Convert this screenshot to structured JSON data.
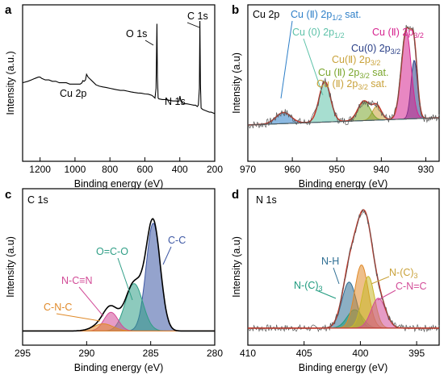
{
  "figure": {
    "panels": [
      "a",
      "b",
      "c",
      "d"
    ]
  },
  "chart_data": [
    {
      "panel": "a",
      "type": "line",
      "title": "",
      "xlabel": "Binding energy (eV)",
      "ylabel": "Intensity (a.u.)",
      "xlim": [
        1300,
        200
      ],
      "x_reversed": true,
      "xticks": [
        "1200",
        "1000",
        "800",
        "600",
        "400",
        "200"
      ],
      "grid": false,
      "series": [
        {
          "x": [
            1300,
            1270,
            1250,
            1230,
            1210,
            1200,
            1190,
            1170,
            1150,
            1130,
            1110,
            1090,
            1070,
            1050,
            1030,
            1010,
            990,
            970,
            960,
            955,
            948,
            940,
            934,
            925,
            900,
            880,
            860,
            840,
            820,
            800,
            780,
            760,
            740,
            720,
            700,
            680,
            660,
            640,
            620,
            600,
            580,
            560,
            550,
            542,
            536,
            531,
            528,
            524,
            520,
            500,
            480,
            460,
            440,
            420,
            410,
            404,
            399,
            394,
            390,
            380,
            360,
            340,
            320,
            310,
            300,
            294,
            288,
            285,
            282,
            278,
            270,
            260,
            250,
            240,
            230,
            220,
            210,
            200
          ],
          "y": [
            0.56,
            0.57,
            0.58,
            0.59,
            0.6,
            0.6,
            0.59,
            0.58,
            0.58,
            0.57,
            0.57,
            0.56,
            0.56,
            0.56,
            0.55,
            0.55,
            0.55,
            0.55,
            0.56,
            0.575,
            0.57,
            0.58,
            0.62,
            0.6,
            0.57,
            0.545,
            0.535,
            0.53,
            0.525,
            0.52,
            0.515,
            0.51,
            0.505,
            0.505,
            0.5,
            0.495,
            0.49,
            0.487,
            0.485,
            0.48,
            0.478,
            0.47,
            0.46,
            0.45,
            0.52,
            0.98,
            0.6,
            0.45,
            0.445,
            0.44,
            0.44,
            0.435,
            0.43,
            0.43,
            0.425,
            0.43,
            0.465,
            0.43,
            0.42,
            0.41,
            0.41,
            0.405,
            0.4,
            0.4,
            0.39,
            0.4,
            0.52,
            1.0,
            0.55,
            0.38,
            0.37,
            0.365,
            0.36,
            0.355,
            0.35,
            0.35,
            0.345,
            0.34
          ]
        }
      ],
      "annotations": [
        "C 1s",
        "O 1s",
        "N 1s",
        "Cu 2p"
      ]
    },
    {
      "panel": "b",
      "type": "area",
      "title": "Cu 2p",
      "xlabel": "Binding energy (eV)",
      "ylabel": "Intensity (a.u)",
      "xlim": [
        970,
        927
      ],
      "x_reversed": true,
      "xticks": [
        "970",
        "960",
        "950",
        "940",
        "930"
      ],
      "grid": false,
      "series": [
        {
          "label": "Cu(0) 2p3/2",
          "color": "#2a3f87",
          "center_eV": 932.6,
          "height": 0.42,
          "fwhm": 1.7
        },
        {
          "label": "Cu (II) 2p3/2",
          "color": "#d6248f",
          "center_eV": 934.4,
          "height": 0.63,
          "fwhm": 2.6
        },
        {
          "label": "Cu (II) 2p3/2 sat.",
          "color": "#c9a23a",
          "center_eV": 941.0,
          "height": 0.1,
          "fwhm": 2.4
        },
        {
          "label": "Cu (II) 2p3/2 sat.",
          "color": "#7aa62d",
          "center_eV": 943.9,
          "height": 0.14,
          "fwhm": 3.2
        },
        {
          "label": "Cu (0) 2p1/2",
          "color": "#5ec2a9",
          "center_eV": 952.7,
          "height": 0.29,
          "fwhm": 3.0
        },
        {
          "label": "Cu (II) 2p1/2 sat.",
          "color": "#2e7fc8",
          "center_eV": 962.0,
          "height": 0.08,
          "fwhm": 4.0
        }
      ],
      "annotations": [
        "Cu (II) 2p1/2 sat.",
        "Cu (0) 2p1/2",
        "Cu (II) 2p3/2",
        "Cu(0) 2p3/2",
        "Cu(II) 2p3/2",
        "Cu (II) 2p3/2 sat.",
        "Cu (II) 2p3/2 sat."
      ]
    },
    {
      "panel": "c",
      "type": "area",
      "title": "C 1s",
      "xlabel": "Binding energy (eV)",
      "ylabel": "Intensity (a.u)",
      "xlim": [
        295,
        280
      ],
      "x_reversed": true,
      "xticks": [
        "295",
        "290",
        "285",
        "280"
      ],
      "grid": false,
      "series": [
        {
          "label": "C-C",
          "color": "#3d57a4",
          "center_eV": 284.8,
          "height": 0.75,
          "fwhm": 1.3
        },
        {
          "label": "O=C-O",
          "color": "#2f9e86",
          "center_eV": 286.3,
          "height": 0.33,
          "fwhm": 1.6
        },
        {
          "label": "N-C≡N",
          "color": "#d24b97",
          "center_eV": 288.1,
          "height": 0.13,
          "fwhm": 1.3
        },
        {
          "label": "C-N-C",
          "color": "#e08a2a",
          "center_eV": 288.7,
          "height": 0.05,
          "fwhm": 1.8
        }
      ],
      "annotations": [
        "C-C",
        "O=C-O",
        "N-C≡N",
        "C-N-C"
      ]
    },
    {
      "panel": "d",
      "type": "area",
      "title": "N 1s",
      "xlabel": "Binding energy (eV)",
      "ylabel": "Intensity (a.u)",
      "xlim": [
        410,
        393
      ],
      "x_reversed": true,
      "xticks": [
        "410",
        "405",
        "400",
        "395"
      ],
      "grid": false,
      "series": [
        {
          "label": "N-H",
          "color": "#2e6e93",
          "center_eV": 401.0,
          "height": 0.4,
          "fwhm": 1.5
        },
        {
          "label": "N-(C)3",
          "color": "#1e9a7e",
          "center_eV": 400.5,
          "height": 0.16,
          "fwhm": 1.6
        },
        {
          "label": "N-(C)3",
          "color": "#e08a2a",
          "center_eV": 399.9,
          "height": 0.55,
          "fwhm": 1.4
        },
        {
          "label": "N-(C)3",
          "color": "#c9b82a",
          "center_eV": 399.3,
          "height": 0.45,
          "fwhm": 1.3
        },
        {
          "label": "C-N=C",
          "color": "#d24b97",
          "center_eV": 398.4,
          "height": 0.26,
          "fwhm": 1.5
        }
      ],
      "annotations": [
        "N-H",
        "N-(C)3",
        "N-(C)3",
        "C-N=C"
      ]
    }
  ]
}
